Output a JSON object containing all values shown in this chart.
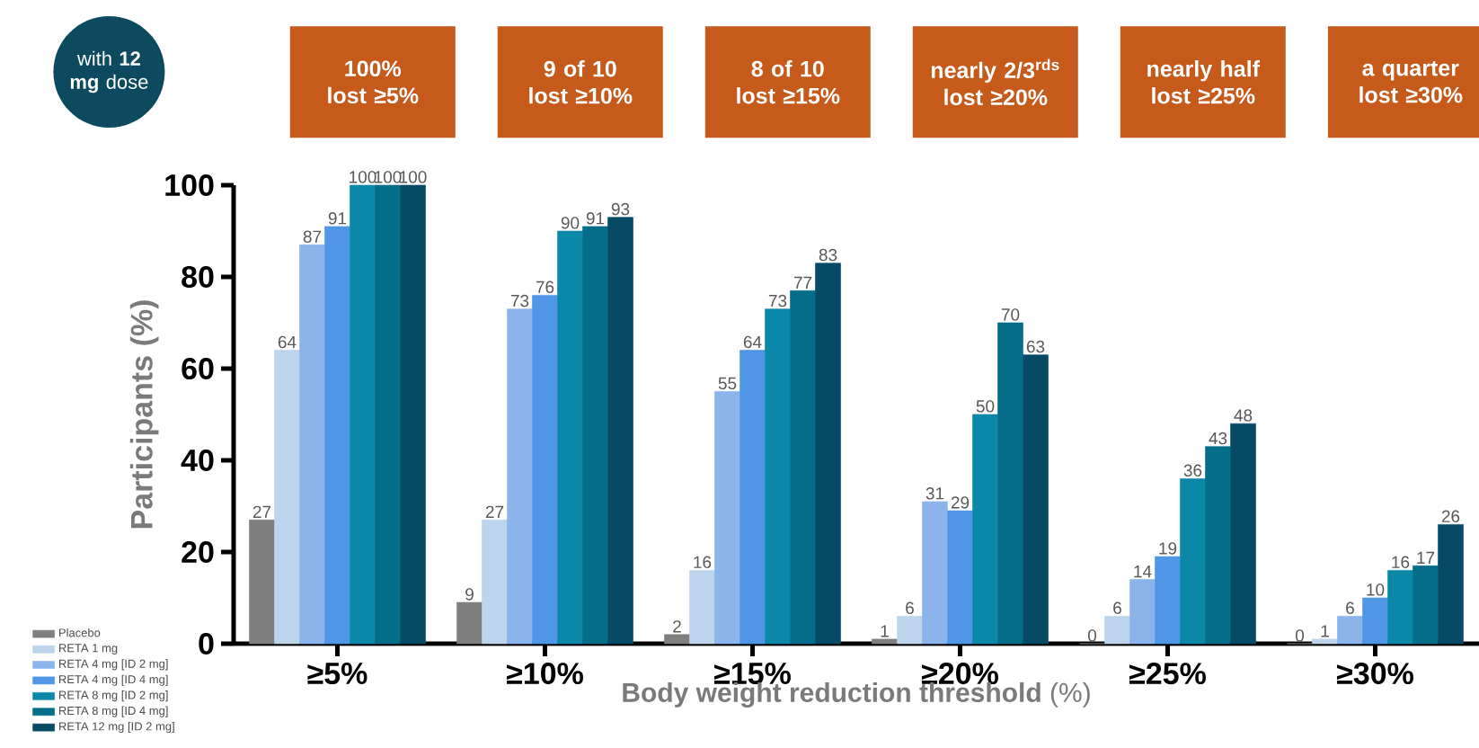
{
  "chart_data": {
    "type": "bar",
    "categories": [
      "≥5%",
      "≥10%",
      "≥15%",
      "≥20%",
      "≥25%",
      "≥30%"
    ],
    "xlabel": "**Body weight reduction threshold** (%)",
    "ylabel": "Participants (%)",
    "ylim": [
      0,
      100
    ],
    "yticks": [
      0,
      20,
      40,
      60,
      80,
      100
    ],
    "series": [
      {
        "name": "Placebo",
        "color": "#7f7f7f",
        "values": [
          27,
          9,
          2,
          1,
          0,
          0
        ]
      },
      {
        "name": "RETA 1 mg",
        "color": "#bcd4ec",
        "values": [
          64,
          27,
          16,
          6,
          6,
          1
        ]
      },
      {
        "name": "RETA 4 mg [ID 2 mg]",
        "color": "#8ab4ea",
        "values": [
          87,
          73,
          55,
          31,
          14,
          6
        ]
      },
      {
        "name": "RETA 4 mg [ID 4 mg]",
        "color": "#4f97e6",
        "values": [
          91,
          76,
          64,
          29,
          19,
          10
        ]
      },
      {
        "name": "RETA 8 mg [ID 2 mg]",
        "color": "#0b88a8",
        "values": [
          100,
          90,
          73,
          50,
          36,
          16
        ]
      },
      {
        "name": "RETA 8 mg [ID 4 mg]",
        "color": "#046d8a",
        "values": [
          100,
          91,
          77,
          70,
          43,
          17
        ]
      },
      {
        "name": "RETA 12 mg [ID 2 mg]",
        "color": "#064a66",
        "values": [
          100,
          93,
          83,
          63,
          48,
          26
        ]
      }
    ],
    "data_labels": true,
    "legend": "bottom left",
    "grid": false,
    "annotations": [
      "with **12 mg** dose",
      "100% lost ≥5%",
      "9 of 10 lost ≥10%",
      "8 of 10 lost ≥15%",
      "nearly 2/3$^{rds}$ lost ≥20%",
      "nearly half lost ≥25%",
      "a quarter lost ≥30%"
    ]
  }
}
